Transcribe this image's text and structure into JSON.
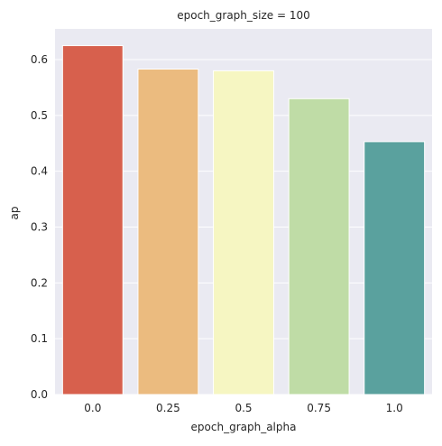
{
  "chart_data": {
    "type": "bar",
    "title": "epoch_graph_size = 100",
    "xlabel": "epoch_graph_alpha",
    "ylabel": "ap",
    "categories": [
      "0.0",
      "0.25",
      "0.5",
      "0.75",
      "1.0"
    ],
    "values": [
      0.625,
      0.583,
      0.58,
      0.53,
      0.453
    ],
    "colors": [
      "#d7604d",
      "#ebbb7f",
      "#f6f6c2",
      "#bfdca6",
      "#5aa19e"
    ],
    "ylim": [
      0,
      0.655
    ],
    "yticks": [
      "0.0",
      "0.1",
      "0.2",
      "0.3",
      "0.4",
      "0.5",
      "0.6"
    ],
    "grid": true,
    "background": "#eaeaf2",
    "grid_color": "#ffffff"
  }
}
